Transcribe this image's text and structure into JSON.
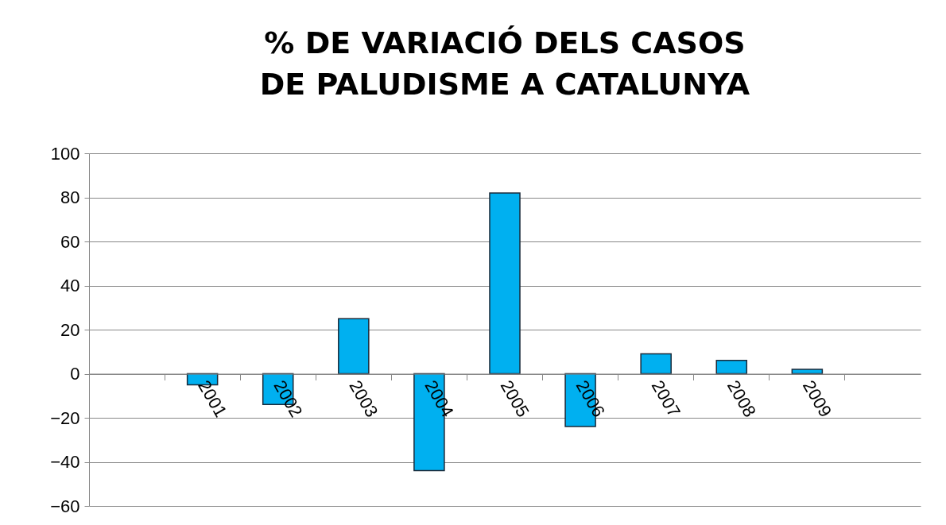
{
  "chart_data": {
    "type": "bar",
    "title": "% DE VARIACIÓ DELS CASOS DE PALUDISME A CATALUNYA",
    "categories": [
      null,
      "2001",
      "2002",
      "2003",
      "2004",
      "2005",
      "2006",
      "2007",
      "2008",
      "2009",
      null
    ],
    "values": [
      null,
      -5,
      -14,
      25,
      -44,
      82,
      -24,
      9,
      6,
      2,
      null
    ],
    "color": "#00b0f0",
    "ylim": [
      -60,
      100
    ],
    "yticks": [
      -60,
      -40,
      -20,
      0,
      20,
      40,
      60,
      80,
      100
    ],
    "grid": "y"
  }
}
